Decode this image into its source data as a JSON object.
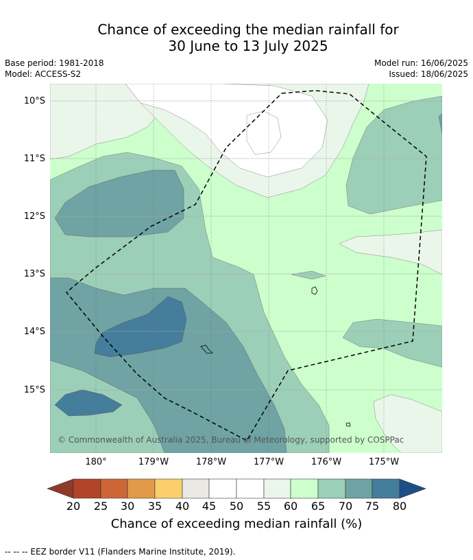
{
  "title_line1": "Chance of exceeding the median rainfall for",
  "title_line2": "30 June to 13 July 2025",
  "base_period": "Base period: 1981-2018",
  "model": "Model: ACCESS-S2",
  "model_run": "Model run: 16/06/2025",
  "issued": "Issued: 18/06/2025",
  "lat_labels": [
    "10°S",
    "11°S",
    "12°S",
    "13°S",
    "14°S",
    "15°S"
  ],
  "lon_labels": [
    "180°",
    "179°W",
    "178°W",
    "177°W",
    "176°W",
    "175°W"
  ],
  "attribution": "© Commonwealth of Australia 2025, Bureau of Meteorology, supported by COSPPac",
  "colorbar": {
    "ticks": [
      "20",
      "25",
      "30",
      "35",
      "40",
      "45",
      "50",
      "55",
      "60",
      "65",
      "70",
      "75",
      "80"
    ],
    "label": "Chance of exceeding median rainfall (%)"
  },
  "colors": {
    "below_20": "#8e3a28",
    "c20_25": "#b04528",
    "c25_30": "#cd6636",
    "c30_35": "#e29a4a",
    "c35_40": "#fccf6e",
    "c40_45": "#eae9e3",
    "c45_50": "#ffffff",
    "c50_55": "#ffffff",
    "c55_60": "#ebf6ea",
    "c60_65": "#ccffcc",
    "c65_70": "#9ccfb7",
    "c70_75": "#6fa3a4",
    "c75_80": "#457d9c",
    "above_80": "#1c4f87"
  },
  "footnote": "--  --  -- EEZ border V11 (Flanders Marine Institute, 2019)."
}
